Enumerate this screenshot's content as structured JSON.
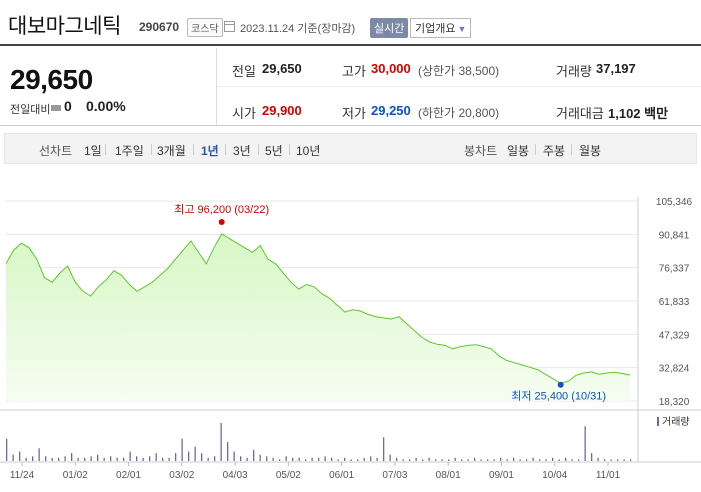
{
  "header": {
    "stock_name": "대보마그네틱",
    "stock_code": "290670",
    "market_badge": "코스닥",
    "date_text": "2023.11.24 기준(장마감)",
    "realtime_label": "실시간",
    "overview_label": "기업개요"
  },
  "summary": {
    "current_price": "29,650",
    "diff_label": "전일대비",
    "diff_value": "0",
    "diff_pct": "0.00%",
    "prev_close_label": "전일",
    "prev_close": "29,650",
    "high_label": "고가",
    "high": "30,000",
    "upper_limit": "(상한가 38,500)",
    "volume_label": "거래량",
    "volume": "37,197",
    "open_label": "시가",
    "open": "29,900",
    "low_label": "저가",
    "low": "29,250",
    "lower_limit": "(하한가 20,800)",
    "amount_label": "거래대금",
    "amount": "1,102 백만"
  },
  "period_bar": {
    "line_label": "선차트",
    "periods": [
      "1일",
      "1주일",
      "3개월",
      "1년",
      "3년",
      "5년",
      "10년"
    ],
    "active_period": "1년",
    "candle_label": "봉차트",
    "candles": [
      "일봉",
      "주봉",
      "월봉"
    ]
  },
  "colors": {
    "line": "#5cc72a",
    "fill_top": "#d7f7c4",
    "fill_bottom": "#f6fdf2",
    "max": "#d60000",
    "min": "#0a54c8",
    "volume": "#6a6aa8"
  },
  "chart_data": {
    "type": "area",
    "ylim": [
      18320,
      105346
    ],
    "y_ticks": [
      "105,346",
      "90,841",
      "76,337",
      "61,833",
      "47,329",
      "32,824",
      "18,320"
    ],
    "x_ticks": [
      "11/24",
      "01/02",
      "02/01",
      "03/02",
      "04/03",
      "05/02",
      "06/01",
      "07/03",
      "08/01",
      "09/01",
      "10/04",
      "11/01"
    ],
    "max_annotation": "최고 96,200 (03/22)",
    "min_annotation": "최저 25,400 (10/31)",
    "volume_legend": "거래량",
    "price": [
      78000,
      84000,
      87000,
      85000,
      80000,
      72000,
      70000,
      74000,
      77000,
      70000,
      66000,
      64000,
      68000,
      71000,
      75000,
      73000,
      69000,
      66000,
      68000,
      70000,
      73000,
      76000,
      80000,
      84000,
      88000,
      83000,
      78000,
      85000,
      91000,
      89000,
      87000,
      85000,
      83000,
      86000,
      80000,
      78000,
      74000,
      70000,
      67000,
      69000,
      68000,
      65000,
      63000,
      60000,
      57000,
      58000,
      57500,
      56000,
      55000,
      54500,
      54000,
      55000,
      52000,
      49000,
      46000,
      44000,
      43000,
      42500,
      41000,
      42000,
      42500,
      42800,
      42000,
      41000,
      38000,
      36000,
      35000,
      34000,
      33000,
      32000,
      30000,
      28000,
      26000,
      27000,
      29500,
      30500,
      31000,
      30000,
      30500,
      30800,
      30300,
      29650
    ],
    "volume": [
      14,
      4,
      6,
      2,
      3,
      8,
      3,
      2,
      2,
      3,
      5,
      2,
      2,
      3,
      4,
      2,
      3,
      2,
      2,
      6,
      3,
      2,
      3,
      5,
      2,
      2,
      5,
      14,
      6,
      9,
      5,
      2,
      3,
      24,
      12,
      6,
      3,
      2,
      7,
      4,
      3,
      2,
      1,
      3,
      2,
      2,
      1,
      2,
      2,
      3,
      2,
      1,
      2,
      1,
      1,
      2,
      3,
      2,
      15,
      4,
      2,
      1,
      1,
      2,
      1,
      2,
      1,
      1,
      1,
      2,
      1,
      1,
      2,
      1,
      1,
      1,
      2,
      1,
      2,
      1,
      1,
      2,
      1,
      1,
      2,
      1,
      2,
      1,
      1,
      22,
      5,
      2,
      1,
      1,
      1,
      1,
      1
    ]
  }
}
